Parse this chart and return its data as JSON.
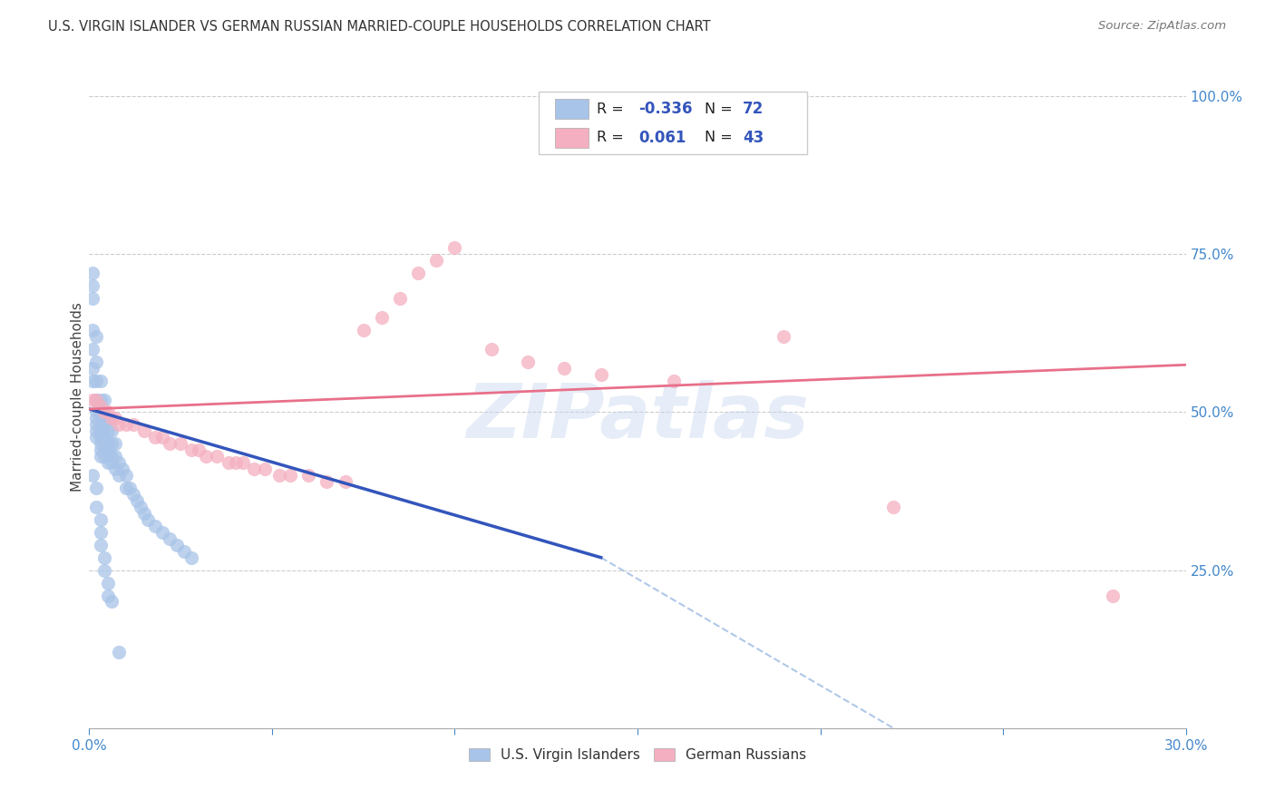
{
  "title": "U.S. VIRGIN ISLANDER VS GERMAN RUSSIAN MARRIED-COUPLE HOUSEHOLDS CORRELATION CHART",
  "source": "Source: ZipAtlas.com",
  "ylabel": "Married-couple Households",
  "xlim": [
    0.0,
    0.3
  ],
  "ylim": [
    0.0,
    1.05
  ],
  "xtick_positions": [
    0.0,
    0.05,
    0.1,
    0.15,
    0.2,
    0.25,
    0.3
  ],
  "xtick_labels": [
    "0.0%",
    "",
    "",
    "",
    "",
    "",
    "30.0%"
  ],
  "ytick_positions": [
    0.25,
    0.5,
    0.75,
    1.0
  ],
  "ytick_labels": [
    "25.0%",
    "50.0%",
    "75.0%",
    "100.0%"
  ],
  "blue_color": "#a8c4e8",
  "pink_color": "#f4afc0",
  "blue_line_color": "#3355bb",
  "pink_line_color": "#e8708a",
  "dashed_line_color": "#b0c8e8",
  "watermark": "ZIPatlas",
  "legend_label1": "U.S. Virgin Islanders",
  "legend_label2": "German Russians",
  "blue_scatter_x": [
    0.001,
    0.001,
    0.001,
    0.001,
    0.001,
    0.001,
    0.001,
    0.002,
    0.002,
    0.002,
    0.002,
    0.002,
    0.002,
    0.002,
    0.002,
    0.002,
    0.003,
    0.003,
    0.003,
    0.003,
    0.003,
    0.003,
    0.003,
    0.003,
    0.003,
    0.004,
    0.004,
    0.004,
    0.004,
    0.004,
    0.004,
    0.005,
    0.005,
    0.005,
    0.005,
    0.005,
    0.006,
    0.006,
    0.006,
    0.006,
    0.007,
    0.007,
    0.007,
    0.008,
    0.008,
    0.009,
    0.01,
    0.01,
    0.011,
    0.012,
    0.013,
    0.014,
    0.015,
    0.016,
    0.018,
    0.02,
    0.022,
    0.024,
    0.026,
    0.028,
    0.001,
    0.002,
    0.002,
    0.003,
    0.003,
    0.003,
    0.004,
    0.004,
    0.005,
    0.005,
    0.006,
    0.008
  ],
  "blue_scatter_y": [
    0.72,
    0.7,
    0.68,
    0.63,
    0.6,
    0.57,
    0.55,
    0.62,
    0.58,
    0.55,
    0.52,
    0.5,
    0.49,
    0.48,
    0.47,
    0.46,
    0.55,
    0.52,
    0.5,
    0.48,
    0.47,
    0.46,
    0.45,
    0.44,
    0.43,
    0.52,
    0.5,
    0.48,
    0.46,
    0.44,
    0.43,
    0.49,
    0.47,
    0.45,
    0.44,
    0.42,
    0.47,
    0.45,
    0.43,
    0.42,
    0.45,
    0.43,
    0.41,
    0.42,
    0.4,
    0.41,
    0.4,
    0.38,
    0.38,
    0.37,
    0.36,
    0.35,
    0.34,
    0.33,
    0.32,
    0.31,
    0.3,
    0.29,
    0.28,
    0.27,
    0.4,
    0.38,
    0.35,
    0.33,
    0.31,
    0.29,
    0.27,
    0.25,
    0.23,
    0.21,
    0.2,
    0.12
  ],
  "pink_scatter_x": [
    0.001,
    0.002,
    0.003,
    0.004,
    0.005,
    0.006,
    0.007,
    0.008,
    0.01,
    0.012,
    0.015,
    0.018,
    0.02,
    0.022,
    0.025,
    0.028,
    0.03,
    0.032,
    0.035,
    0.038,
    0.04,
    0.042,
    0.045,
    0.048,
    0.052,
    0.055,
    0.06,
    0.065,
    0.07,
    0.075,
    0.08,
    0.085,
    0.09,
    0.095,
    0.1,
    0.11,
    0.12,
    0.13,
    0.14,
    0.16,
    0.19,
    0.22,
    0.28
  ],
  "pink_scatter_y": [
    0.52,
    0.52,
    0.51,
    0.5,
    0.5,
    0.49,
    0.49,
    0.48,
    0.48,
    0.48,
    0.47,
    0.46,
    0.46,
    0.45,
    0.45,
    0.44,
    0.44,
    0.43,
    0.43,
    0.42,
    0.42,
    0.42,
    0.41,
    0.41,
    0.4,
    0.4,
    0.4,
    0.39,
    0.39,
    0.63,
    0.65,
    0.68,
    0.72,
    0.74,
    0.76,
    0.6,
    0.58,
    0.57,
    0.56,
    0.55,
    0.62,
    0.35,
    0.21
  ],
  "blue_line_x": [
    0.0,
    0.14
  ],
  "blue_line_y": [
    0.505,
    0.27
  ],
  "pink_line_x": [
    0.0,
    0.3
  ],
  "pink_line_y": [
    0.505,
    0.575
  ],
  "dashed_line_x": [
    0.14,
    0.22
  ],
  "dashed_line_y": [
    0.27,
    0.0
  ]
}
